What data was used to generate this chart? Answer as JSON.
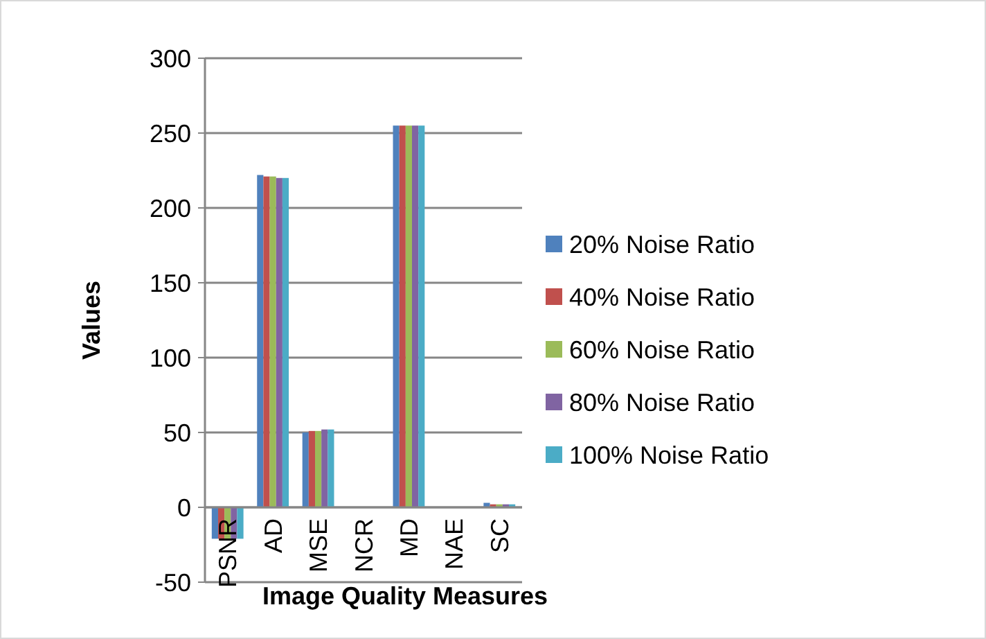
{
  "chart_data": {
    "type": "bar",
    "xlabel": "Image Quality Measures",
    "ylabel": "Values",
    "categories": [
      "PSNR",
      "AD",
      "MSE",
      "NCR",
      "MD",
      "NAE",
      "SC"
    ],
    "series": [
      {
        "name": "20% Noise Ratio",
        "color": "#4f81bd",
        "values": [
          -21,
          222,
          50,
          null,
          255,
          null,
          3
        ]
      },
      {
        "name": "40% Noise Ratio",
        "color": "#c0504d",
        "values": [
          -21,
          221,
          51,
          null,
          255,
          null,
          2
        ]
      },
      {
        "name": "60% Noise Ratio",
        "color": "#9bbb59",
        "values": [
          -21,
          221,
          51,
          null,
          255,
          null,
          2
        ]
      },
      {
        "name": "80% Noise Ratio",
        "color": "#8064a2",
        "values": [
          -21,
          220,
          52,
          null,
          255,
          null,
          2
        ]
      },
      {
        "name": "100% Noise Ratio",
        "color": "#4bacc6",
        "values": [
          -21,
          220,
          52,
          null,
          255,
          null,
          2
        ]
      }
    ],
    "ylim": [
      -50,
      300
    ],
    "yticks": [
      -50,
      0,
      50,
      100,
      150,
      200,
      250,
      300
    ],
    "grid": "y",
    "legend": "right"
  }
}
